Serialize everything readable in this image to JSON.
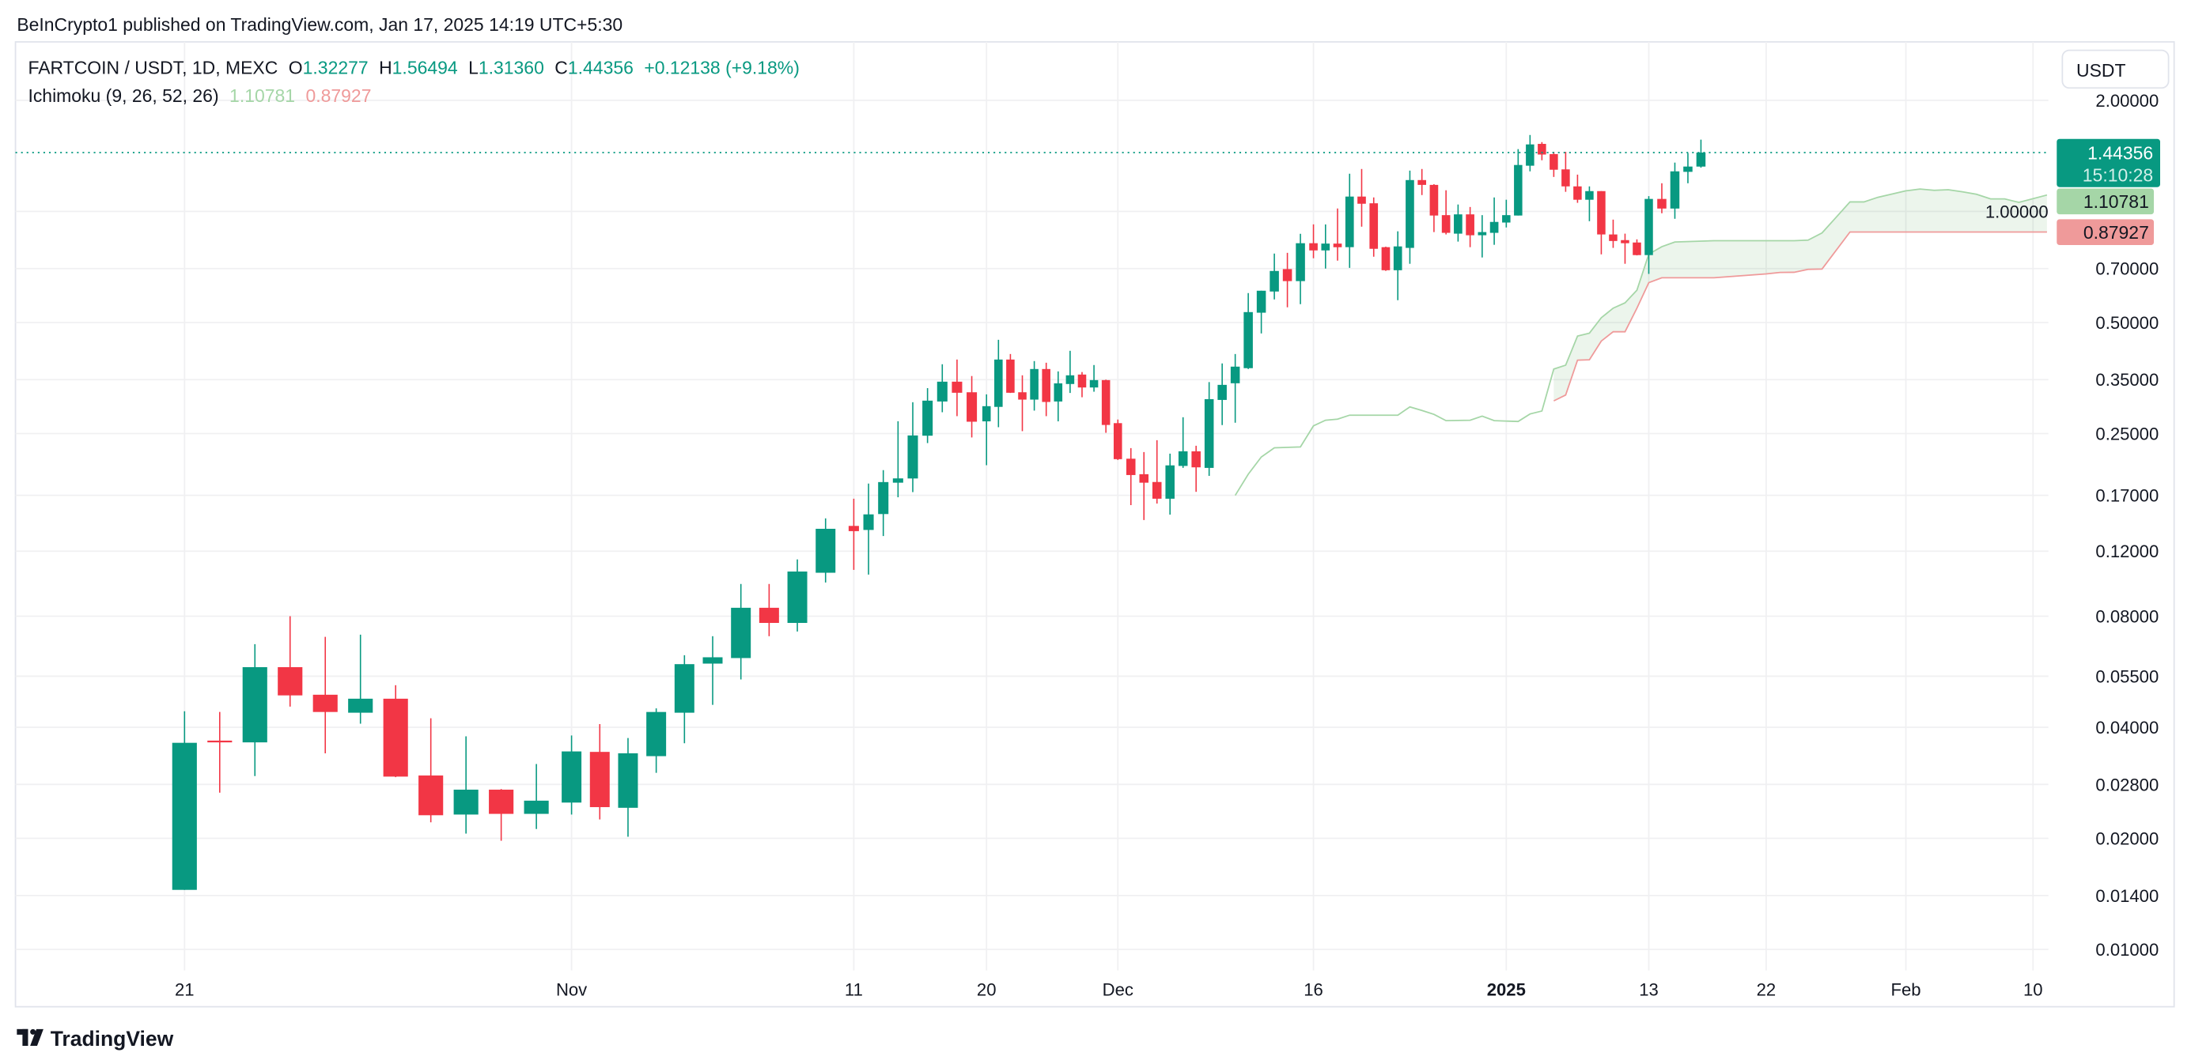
{
  "header": {
    "published": "BeInCrypto1 published on TradingView.com, Jan 17, 2025 14:19 UTC+5:30"
  },
  "legend": {
    "symbol": "FARTCOIN / USDT, 1D, MEXC",
    "o_label": "O",
    "o": "1.32277",
    "h_label": "H",
    "h": "1.56494",
    "l_label": "L",
    "l": "1.31360",
    "c_label": "C",
    "c": "1.44356",
    "change": "+0.12138 (+9.18%)",
    "indicator": "Ichimoku (9, 26, 52, 26)",
    "lead1": "1.10781",
    "lead2": "0.87927"
  },
  "currency_button": "USDT",
  "badges": {
    "last_price": "1.44356",
    "countdown": "15:10:28",
    "lead1": "1.10781",
    "lead2": "0.87927"
  },
  "footer": {
    "brand": "TradingView"
  },
  "colors": {
    "up": "#089981",
    "down": "#F23645",
    "lead1": "#A5D6A7",
    "lead2": "#EF9A9A",
    "cloud_fill": "rgba(67,160,71,0.10)",
    "text": "#131722"
  },
  "chart_data": {
    "type": "candlestick",
    "scale": "log",
    "grid": true,
    "ylim": [
      0.00877,
      2.88
    ],
    "last_price": 1.44356,
    "yticks": [
      {
        "value": 2.0,
        "label": "2.00000"
      },
      {
        "value": 1.0,
        "label": "1.00000"
      },
      {
        "value": 0.7,
        "label": "0.70000"
      },
      {
        "value": 0.5,
        "label": "0.50000"
      },
      {
        "value": 0.35,
        "label": "0.35000"
      },
      {
        "value": 0.25,
        "label": "0.25000"
      },
      {
        "value": 0.17,
        "label": "0.17000"
      },
      {
        "value": 0.12,
        "label": "0.12000"
      },
      {
        "value": 0.08,
        "label": "0.08000"
      },
      {
        "value": 0.055,
        "label": "0.05500"
      },
      {
        "value": 0.04,
        "label": "0.04000"
      },
      {
        "value": 0.028,
        "label": "0.02800"
      },
      {
        "value": 0.02,
        "label": "0.02000"
      },
      {
        "value": 0.014,
        "label": "0.01400"
      },
      {
        "value": 0.01,
        "label": "0.01000"
      }
    ],
    "xticks": [
      {
        "label": "21",
        "date": "2024-10-21",
        "bold": false
      },
      {
        "label": "Nov",
        "date": "2024-11-01",
        "bold": false
      },
      {
        "label": "11",
        "date": "2024-11-11",
        "bold": false
      },
      {
        "label": "20",
        "date": "2024-11-20",
        "bold": false
      },
      {
        "label": "Dec",
        "date": "2024-12-01",
        "bold": false
      },
      {
        "label": "16",
        "date": "2024-12-16",
        "bold": false
      },
      {
        "label": "2025",
        "date": "2025-01-01",
        "bold": true
      },
      {
        "label": "13",
        "date": "2025-01-13",
        "bold": false
      },
      {
        "label": "22",
        "date": "2025-01-22",
        "bold": false
      },
      {
        "label": "Feb",
        "date": "2025-02-01",
        "bold": false
      },
      {
        "label": "10",
        "date": "2025-02-10",
        "bold": false
      }
    ],
    "candles": [
      [
        "2024-10-21",
        0.0145,
        0.0442,
        0.0145,
        0.0363
      ],
      [
        "2024-10-22",
        0.0368,
        0.044,
        0.0266,
        0.0364
      ],
      [
        "2024-10-23",
        0.0364,
        0.0672,
        0.0295,
        0.0582
      ],
      [
        "2024-10-24",
        0.0582,
        0.08,
        0.0455,
        0.0488
      ],
      [
        "2024-10-25",
        0.049,
        0.0703,
        0.034,
        0.044
      ],
      [
        "2024-10-26",
        0.0438,
        0.0713,
        0.0409,
        0.0478
      ],
      [
        "2024-10-27",
        0.0478,
        0.052,
        0.0293,
        0.0294
      ],
      [
        "2024-10-28",
        0.0296,
        0.0423,
        0.0221,
        0.0231
      ],
      [
        "2024-10-29",
        0.0232,
        0.0378,
        0.0206,
        0.0271
      ],
      [
        "2024-10-30",
        0.0271,
        0.0272,
        0.0197,
        0.0233
      ],
      [
        "2024-10-31",
        0.0233,
        0.0318,
        0.0212,
        0.0253
      ],
      [
        "2024-11-01",
        0.025,
        0.038,
        0.0232,
        0.0344
      ],
      [
        "2024-11-02",
        0.0343,
        0.0408,
        0.0225,
        0.0243
      ],
      [
        "2024-11-03",
        0.0242,
        0.0374,
        0.0202,
        0.034
      ],
      [
        "2024-11-04",
        0.0334,
        0.045,
        0.0301,
        0.044
      ],
      [
        "2024-11-05",
        0.0438,
        0.0627,
        0.0362,
        0.0593
      ],
      [
        "2024-11-06",
        0.0595,
        0.0706,
        0.046,
        0.0619
      ],
      [
        "2024-11-07",
        0.0616,
        0.0978,
        0.0539,
        0.0843
      ],
      [
        "2024-11-08",
        0.0843,
        0.0978,
        0.0706,
        0.0767
      ],
      [
        "2024-11-09",
        0.0767,
        0.114,
        0.0727,
        0.1057
      ],
      [
        "2024-11-10",
        0.1049,
        0.1473,
        0.0987,
        0.138
      ],
      [
        "2024-11-11",
        0.1405,
        0.1665,
        0.1068,
        0.136
      ],
      [
        "2024-11-12",
        0.137,
        0.183,
        0.1037,
        0.151
      ],
      [
        "2024-11-13",
        0.1513,
        0.199,
        0.1319,
        0.1847
      ],
      [
        "2024-11-14",
        0.184,
        0.27,
        0.168,
        0.189
      ],
      [
        "2024-11-15",
        0.1889,
        0.304,
        0.1735,
        0.2471
      ],
      [
        "2024-11-16",
        0.2467,
        0.332,
        0.2356,
        0.307
      ],
      [
        "2024-11-17",
        0.3054,
        0.3853,
        0.2856,
        0.3456
      ],
      [
        "2024-11-18",
        0.3456,
        0.3968,
        0.2787,
        0.3225
      ],
      [
        "2024-11-19",
        0.3235,
        0.358,
        0.244,
        0.2692
      ],
      [
        "2024-11-20",
        0.2698,
        0.3193,
        0.2052,
        0.2966
      ],
      [
        "2024-11-21",
        0.2953,
        0.4488,
        0.2601,
        0.3968
      ],
      [
        "2024-11-22",
        0.3968,
        0.4107,
        0.3221,
        0.3225
      ],
      [
        "2024-11-23",
        0.3235,
        0.3596,
        0.2538,
        0.309
      ],
      [
        "2024-11-24",
        0.309,
        0.393,
        0.2885,
        0.374
      ],
      [
        "2024-11-25",
        0.374,
        0.389,
        0.2787,
        0.3045
      ],
      [
        "2024-11-26",
        0.3054,
        0.3685,
        0.2698,
        0.342
      ],
      [
        "2024-11-27",
        0.3406,
        0.419,
        0.3221,
        0.3596
      ],
      [
        "2024-11-28",
        0.3613,
        0.367,
        0.3136,
        0.3333
      ],
      [
        "2024-11-29",
        0.3333,
        0.3834,
        0.3246,
        0.349
      ],
      [
        "2024-11-30",
        0.349,
        0.35,
        0.2512,
        0.2638
      ],
      [
        "2024-12-01",
        0.2668,
        0.2729,
        0.212,
        0.2131
      ],
      [
        "2024-12-02",
        0.2137,
        0.2283,
        0.16,
        0.193
      ],
      [
        "2024-12-03",
        0.194,
        0.2227,
        0.1457,
        0.184
      ],
      [
        "2024-12-04",
        0.1848,
        0.2398,
        0.1616,
        0.1665
      ],
      [
        "2024-12-05",
        0.1665,
        0.2205,
        0.1508,
        0.205
      ],
      [
        "2024-12-06",
        0.2043,
        0.2768,
        0.2018,
        0.2238
      ],
      [
        "2024-12-07",
        0.2238,
        0.2317,
        0.1738,
        0.2025
      ],
      [
        "2024-12-08",
        0.2018,
        0.3447,
        0.192,
        0.3099
      ],
      [
        "2024-12-09",
        0.3084,
        0.3873,
        0.2636,
        0.3388
      ],
      [
        "2024-12-10",
        0.3422,
        0.4107,
        0.2675,
        0.3796
      ],
      [
        "2024-12-11",
        0.376,
        0.6007,
        0.374,
        0.5335
      ],
      [
        "2024-12-12",
        0.5315,
        0.6096,
        0.467,
        0.6096
      ],
      [
        "2024-12-13",
        0.6066,
        0.7687,
        0.5774,
        0.6896
      ],
      [
        "2024-12-14",
        0.6977,
        0.7722,
        0.5497,
        0.6473
      ],
      [
        "2024-12-15",
        0.6473,
        0.8696,
        0.5606,
        0.82
      ],
      [
        "2024-12-16",
        0.82,
        0.9224,
        0.7466,
        0.784
      ],
      [
        "2024-12-17",
        0.784,
        0.922,
        0.7,
        0.8181
      ],
      [
        "2024-12-18",
        0.818,
        1.0184,
        0.7355,
        0.7997
      ],
      [
        "2024-12-19",
        0.8,
        1.265,
        0.7031,
        1.097
      ],
      [
        "2024-12-20",
        1.097,
        1.303,
        0.9091,
        1.049
      ],
      [
        "2024-12-21",
        1.052,
        1.091,
        0.7539,
        0.7919
      ],
      [
        "2024-12-22",
        0.8,
        0.8024,
        0.69,
        0.6928
      ],
      [
        "2024-12-23",
        0.6928,
        0.8832,
        0.5748,
        0.8038
      ],
      [
        "2024-12-24",
        0.7964,
        1.29,
        0.7212,
        1.216
      ],
      [
        "2024-12-25",
        1.216,
        1.303,
        1.1073,
        1.18
      ],
      [
        "2024-12-26",
        1.18,
        1.185,
        0.879,
        0.9746
      ],
      [
        "2024-12-27",
        0.977,
        1.141,
        0.8661,
        0.8748
      ],
      [
        "2024-12-28",
        0.8704,
        1.044,
        0.8283,
        0.9817
      ],
      [
        "2024-12-29",
        0.9817,
        1.028,
        0.8,
        0.8618
      ],
      [
        "2024-12-30",
        0.8618,
        0.977,
        0.7502,
        0.879
      ],
      [
        "2024-12-31",
        0.8748,
        1.091,
        0.8119,
        0.9365
      ],
      [
        "2025-01-01",
        0.9329,
        1.0755,
        0.9047,
        0.977
      ],
      [
        "2025-01-02",
        0.9746,
        1.475,
        0.9746,
        1.336
      ],
      [
        "2025-01-03",
        1.33,
        1.611,
        1.284,
        1.519
      ],
      [
        "2025-01-04",
        1.524,
        1.541,
        1.376,
        1.426
      ],
      [
        "2025-01-05",
        1.43,
        1.45,
        1.24,
        1.297
      ],
      [
        "2025-01-06",
        1.3,
        1.45,
        1.13,
        1.169
      ],
      [
        "2025-01-07",
        1.169,
        1.258,
        1.055,
        1.0755
      ],
      [
        "2025-01-08",
        1.0755,
        1.169,
        0.9408,
        1.135
      ],
      [
        "2025-01-09",
        1.135,
        1.135,
        0.7649,
        0.8661
      ],
      [
        "2025-01-10",
        0.866,
        0.95,
        0.7964,
        0.8315
      ],
      [
        "2025-01-11",
        0.836,
        0.8704,
        0.7212,
        0.82
      ],
      [
        "2025-01-12",
        0.8236,
        0.84,
        0.76,
        0.7614
      ],
      [
        "2025-01-13",
        0.7614,
        1.1,
        0.677,
        1.081
      ],
      [
        "2025-01-14",
        1.081,
        1.192,
        0.9886,
        1.018
      ],
      [
        "2025-01-15",
        1.018,
        1.356,
        0.955,
        1.284
      ],
      [
        "2025-01-16",
        1.28,
        1.439,
        1.192,
        1.323
      ],
      [
        "2025-01-17",
        1.32277,
        1.56494,
        1.3136,
        1.44356
      ]
    ],
    "ichimoku": {
      "lead1": [
        [
          "2024-12-10",
          0.17
        ],
        [
          "2024-12-11",
          0.194
        ],
        [
          "2024-12-12",
          0.216
        ],
        [
          "2024-12-13",
          0.2287
        ],
        [
          "2024-12-15",
          0.23
        ],
        [
          "2024-12-16",
          0.2623
        ],
        [
          "2024-12-17",
          0.2717
        ],
        [
          "2024-12-18",
          0.2735
        ],
        [
          "2024-12-19",
          0.2804
        ],
        [
          "2024-12-23",
          0.2804
        ],
        [
          "2024-12-24",
          0.2953
        ],
        [
          "2024-12-25",
          0.2888
        ],
        [
          "2024-12-26",
          0.2818
        ],
        [
          "2024-12-27",
          0.271
        ],
        [
          "2024-12-29",
          0.2717
        ],
        [
          "2024-12-30",
          0.2787
        ],
        [
          "2024-12-31",
          0.271
        ],
        [
          "2025-01-02",
          0.2696
        ],
        [
          "2025-01-03",
          0.2825
        ],
        [
          "2025-01-04",
          0.2878
        ],
        [
          "2025-01-05",
          0.3739
        ],
        [
          "2025-01-06",
          0.3831
        ],
        [
          "2025-01-07",
          0.4594
        ],
        [
          "2025-01-08",
          0.4678
        ],
        [
          "2025-01-09",
          0.515
        ],
        [
          "2025-01-10",
          0.5467
        ],
        [
          "2025-01-11",
          0.5652
        ],
        [
          "2025-01-12",
          0.6116
        ],
        [
          "2025-01-13",
          0.766
        ],
        [
          "2025-01-14",
          0.8024
        ],
        [
          "2025-01-15",
          0.8263
        ],
        [
          "2025-01-18",
          0.833
        ],
        [
          "2025-01-24",
          0.833
        ],
        [
          "2025-01-25",
          0.836
        ],
        [
          "2025-01-26",
          0.8744
        ],
        [
          "2025-01-27",
          0.963
        ],
        [
          "2025-01-28",
          1.061
        ],
        [
          "2025-01-29",
          1.061
        ],
        [
          "2025-01-30",
          1.092
        ],
        [
          "2025-02-01",
          1.137
        ],
        [
          "2025-02-02",
          1.15
        ],
        [
          "2025-02-03",
          1.141
        ],
        [
          "2025-02-04",
          1.145
        ],
        [
          "2025-02-05",
          1.13
        ],
        [
          "2025-02-06",
          1.113
        ],
        [
          "2025-02-07",
          1.081
        ],
        [
          "2025-02-08",
          1.081
        ],
        [
          "2025-02-09",
          1.058
        ],
        [
          "2025-02-11",
          1.10781
        ]
      ],
      "lead2": [
        [
          "2025-01-05",
          0.3066
        ],
        [
          "2025-01-06",
          0.318
        ],
        [
          "2025-01-07",
          0.3953
        ],
        [
          "2025-01-08",
          0.3962
        ],
        [
          "2025-01-09",
          0.4452
        ],
        [
          "2025-01-10",
          0.4719
        ],
        [
          "2025-01-11",
          0.4719
        ],
        [
          "2025-01-12",
          0.5467
        ],
        [
          "2025-01-13",
          0.641
        ],
        [
          "2025-01-14",
          0.661
        ],
        [
          "2025-01-18",
          0.661
        ],
        [
          "2025-01-22",
          0.677
        ],
        [
          "2025-01-23",
          0.6835
        ],
        [
          "2025-01-24",
          0.684
        ],
        [
          "2025-01-25",
          0.6964
        ],
        [
          "2025-01-26",
          0.698
        ],
        [
          "2025-01-28",
          0.87927
        ],
        [
          "2025-02-11",
          0.87927
        ]
      ]
    }
  }
}
